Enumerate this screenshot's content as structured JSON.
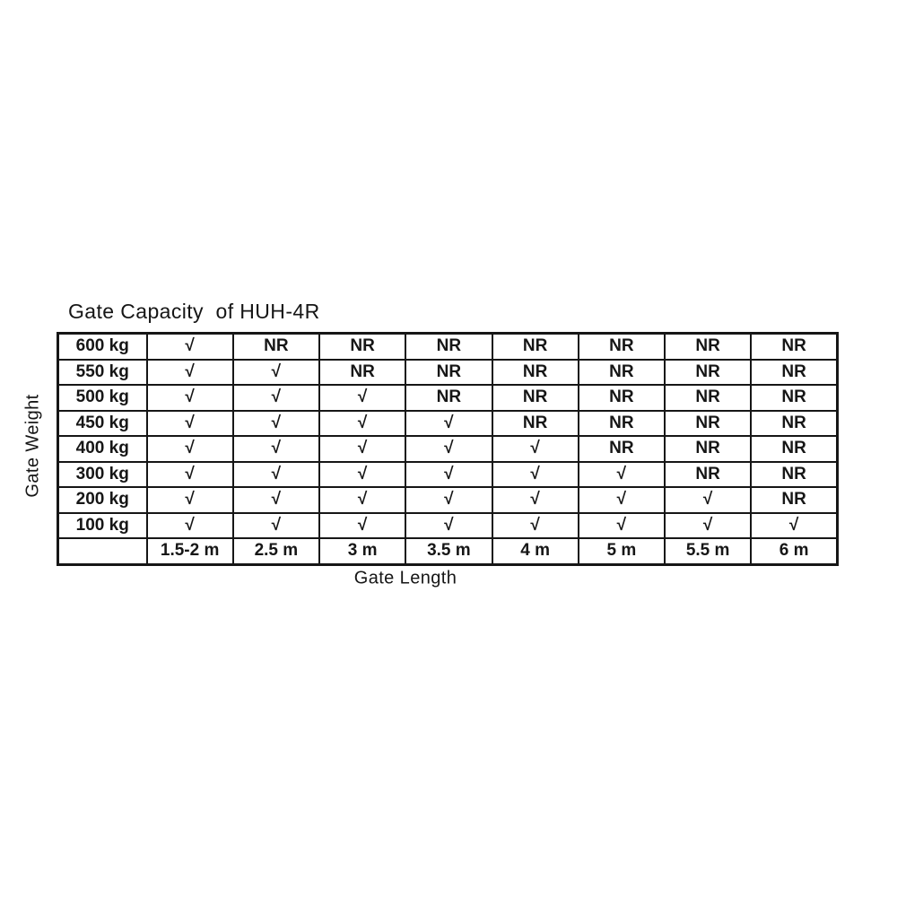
{
  "page": {
    "background_color": "#ffffff",
    "text_color": "#161616",
    "border_color": "#161616"
  },
  "chart_data": {
    "type": "table",
    "title": "Gate Capacity  of HUH-4R",
    "ylabel": "Gate Weight",
    "xlabel": "Gate Length",
    "check_symbol": "√",
    "not_recommended_symbol": "NR",
    "columns": [
      "1.5-2 m",
      "2.5 m",
      "3 m",
      "3.5 m",
      "4 m",
      "5 m",
      "5.5 m",
      "6 m"
    ],
    "rows": [
      {
        "weight": "600 kg",
        "cells": [
          "√",
          "NR",
          "NR",
          "NR",
          "NR",
          "NR",
          "NR",
          "NR"
        ]
      },
      {
        "weight": "550 kg",
        "cells": [
          "√",
          "√",
          "NR",
          "NR",
          "NR",
          "NR",
          "NR",
          "NR"
        ]
      },
      {
        "weight": "500 kg",
        "cells": [
          "√",
          "√",
          "√",
          "NR",
          "NR",
          "NR",
          "NR",
          "NR"
        ]
      },
      {
        "weight": "450 kg",
        "cells": [
          "√",
          "√",
          "√",
          "√",
          "NR",
          "NR",
          "NR",
          "NR"
        ]
      },
      {
        "weight": "400 kg",
        "cells": [
          "√",
          "√",
          "√",
          "√",
          "√",
          "NR",
          "NR",
          "NR"
        ]
      },
      {
        "weight": "300 kg",
        "cells": [
          "√",
          "√",
          "√",
          "√",
          "√",
          "√",
          "NR",
          "NR"
        ]
      },
      {
        "weight": "200 kg",
        "cells": [
          "√",
          "√",
          "√",
          "√",
          "√",
          "√",
          "√",
          "NR"
        ]
      },
      {
        "weight": "100 kg",
        "cells": [
          "√",
          "√",
          "√",
          "√",
          "√",
          "√",
          "√",
          "√"
        ]
      }
    ]
  }
}
